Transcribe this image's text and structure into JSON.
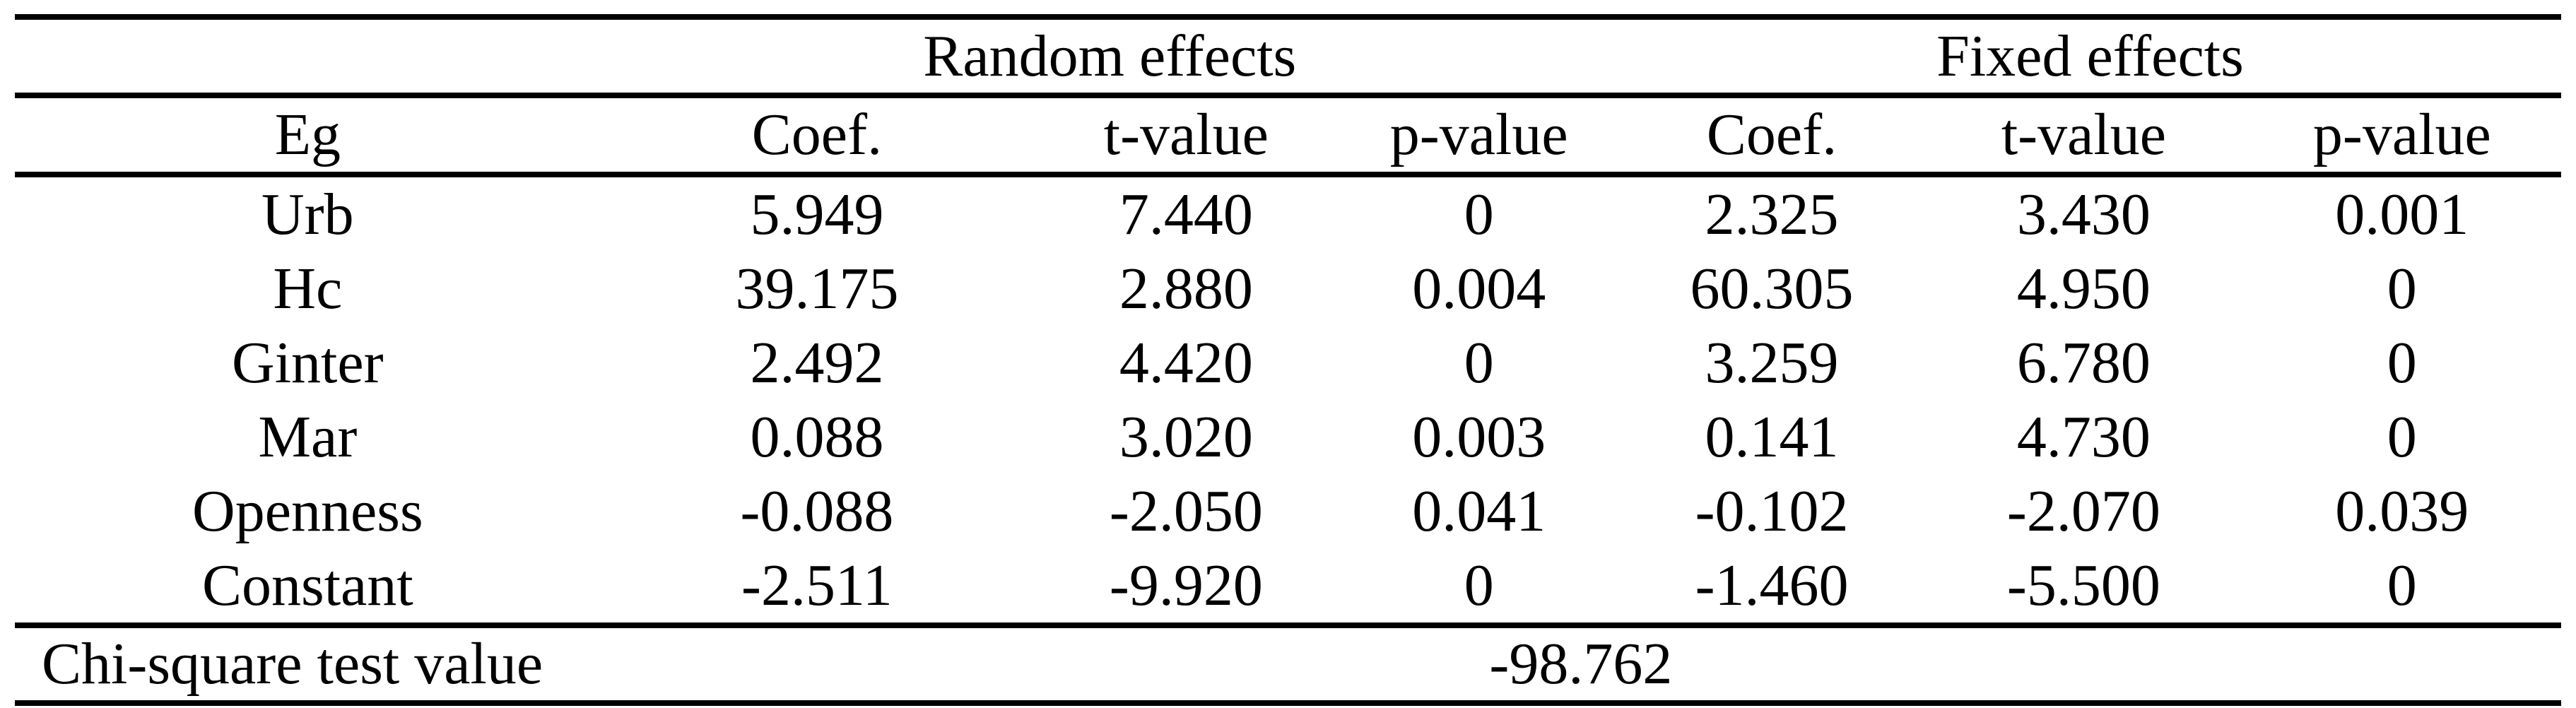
{
  "table": {
    "group_headers": [
      "Random effects",
      "Fixed effects"
    ],
    "column_headers": [
      "Eg",
      "Coef.",
      "t-value",
      "p-value",
      "Coef.",
      "t-value",
      "p-value"
    ],
    "rows": [
      {
        "label": "Urb",
        "values": [
          "5.949",
          "7.440",
          "0",
          "2.325",
          "3.430",
          "0.001"
        ]
      },
      {
        "label": "Hc",
        "values": [
          "39.175",
          "2.880",
          "0.004",
          "60.305",
          "4.950",
          "0"
        ]
      },
      {
        "label": "Ginter",
        "values": [
          "2.492",
          "4.420",
          "0",
          "3.259",
          "6.780",
          "0"
        ]
      },
      {
        "label": "Mar",
        "values": [
          "0.088",
          "3.020",
          "0.003",
          "0.141",
          "4.730",
          "0"
        ]
      },
      {
        "label": "Openness",
        "values": [
          "-0.088",
          "-2.050",
          "0.041",
          "-0.102",
          "-2.070",
          "0.039"
        ]
      },
      {
        "label": "Constant",
        "values": [
          "-2.511",
          "-9.920",
          "0",
          "-1.460",
          "-5.500",
          "0"
        ]
      }
    ],
    "footer": {
      "label": "Chi-square test value",
      "value": "-98.762"
    }
  },
  "colors": {
    "text": "#000000",
    "background": "#ffffff",
    "rule": "#000000"
  }
}
